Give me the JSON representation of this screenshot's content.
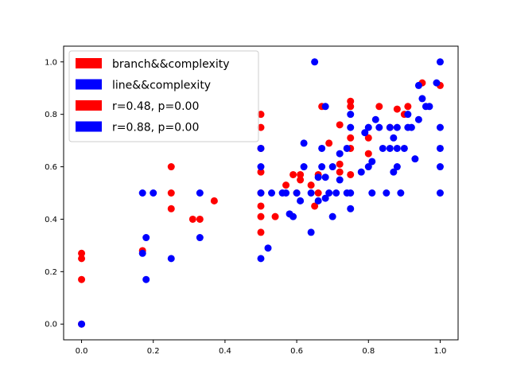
{
  "chart_data": {
    "type": "scatter",
    "xlim": [
      -0.05,
      1.05
    ],
    "ylim": [
      -0.06,
      1.06
    ],
    "x_ticks": [
      0.0,
      0.2,
      0.4,
      0.6,
      0.8,
      1.0
    ],
    "y_ticks": [
      0.0,
      0.2,
      0.4,
      0.6,
      0.8,
      1.0
    ],
    "x_tick_labels": [
      "0.0",
      "0.2",
      "0.4",
      "0.6",
      "0.8",
      "1.0"
    ],
    "y_tick_labels": [
      "0.0",
      "0.2",
      "0.4",
      "0.6",
      "0.8",
      "1.0"
    ],
    "grid": false,
    "legend_position": "upper-left",
    "legend": [
      {
        "label": "branch&&complexity",
        "color": "#ff0000"
      },
      {
        "label": "line&&complexity",
        "color": "#0000ff"
      },
      {
        "label": "r=0.48, p=0.00",
        "color": "#ff0000"
      },
      {
        "label": "r=0.88, p=0.00",
        "color": "#0000ff"
      }
    ],
    "series": [
      {
        "name": "branch&&complexity",
        "color": "#ff0000",
        "points": [
          [
            0.0,
            0.17
          ],
          [
            0.0,
            0.25
          ],
          [
            0.0,
            0.27
          ],
          [
            0.0,
            0.0
          ],
          [
            0.17,
            0.28
          ],
          [
            0.25,
            0.44
          ],
          [
            0.25,
            0.5
          ],
          [
            0.25,
            0.6
          ],
          [
            0.31,
            0.4
          ],
          [
            0.33,
            0.4
          ],
          [
            0.37,
            0.47
          ],
          [
            0.5,
            0.35
          ],
          [
            0.5,
            0.41
          ],
          [
            0.5,
            0.45
          ],
          [
            0.5,
            0.5
          ],
          [
            0.5,
            0.58
          ],
          [
            0.5,
            0.67
          ],
          [
            0.5,
            0.75
          ],
          [
            0.5,
            0.8
          ],
          [
            0.54,
            0.41
          ],
          [
            0.57,
            0.53
          ],
          [
            0.59,
            0.57
          ],
          [
            0.6,
            0.5
          ],
          [
            0.61,
            0.55
          ],
          [
            0.61,
            0.57
          ],
          [
            0.64,
            0.53
          ],
          [
            0.65,
            0.45
          ],
          [
            0.66,
            0.5
          ],
          [
            0.66,
            0.57
          ],
          [
            0.67,
            0.83
          ],
          [
            0.69,
            0.69
          ],
          [
            0.72,
            0.58
          ],
          [
            0.72,
            0.61
          ],
          [
            0.72,
            0.76
          ],
          [
            0.75,
            0.57
          ],
          [
            0.75,
            0.67
          ],
          [
            0.75,
            0.71
          ],
          [
            0.75,
            0.83
          ],
          [
            0.75,
            0.85
          ],
          [
            0.8,
            0.65
          ],
          [
            0.8,
            0.71
          ],
          [
            0.83,
            0.83
          ],
          [
            0.86,
            0.75
          ],
          [
            0.88,
            0.82
          ],
          [
            0.9,
            0.8
          ],
          [
            0.91,
            0.83
          ],
          [
            0.95,
            0.92
          ],
          [
            1.0,
            0.91
          ]
        ]
      },
      {
        "name": "line&&complexity",
        "color": "#0000ff",
        "points": [
          [
            0.0,
            0.0
          ],
          [
            0.17,
            0.27
          ],
          [
            0.17,
            0.5
          ],
          [
            0.18,
            0.17
          ],
          [
            0.18,
            0.33
          ],
          [
            0.2,
            0.5
          ],
          [
            0.25,
            0.25
          ],
          [
            0.33,
            0.33
          ],
          [
            0.33,
            0.5
          ],
          [
            0.5,
            0.25
          ],
          [
            0.5,
            0.5
          ],
          [
            0.5,
            0.6
          ],
          [
            0.5,
            0.67
          ],
          [
            0.52,
            0.29
          ],
          [
            0.53,
            0.5
          ],
          [
            0.56,
            0.5
          ],
          [
            0.57,
            0.5
          ],
          [
            0.58,
            0.42
          ],
          [
            0.59,
            0.41
          ],
          [
            0.6,
            0.5
          ],
          [
            0.61,
            0.47
          ],
          [
            0.62,
            0.6
          ],
          [
            0.62,
            0.69
          ],
          [
            0.64,
            0.35
          ],
          [
            0.64,
            0.5
          ],
          [
            0.65,
            1.0
          ],
          [
            0.66,
            0.47
          ],
          [
            0.66,
            0.56
          ],
          [
            0.67,
            0.6
          ],
          [
            0.67,
            0.67
          ],
          [
            0.68,
            0.48
          ],
          [
            0.68,
            0.56
          ],
          [
            0.68,
            0.83
          ],
          [
            0.69,
            0.5
          ],
          [
            0.7,
            0.41
          ],
          [
            0.7,
            0.6
          ],
          [
            0.71,
            0.5
          ],
          [
            0.72,
            0.55
          ],
          [
            0.72,
            0.65
          ],
          [
            0.74,
            0.5
          ],
          [
            0.74,
            0.67
          ],
          [
            0.75,
            0.44
          ],
          [
            0.75,
            0.5
          ],
          [
            0.75,
            0.75
          ],
          [
            0.75,
            0.8
          ],
          [
            0.78,
            0.58
          ],
          [
            0.79,
            0.73
          ],
          [
            0.8,
            0.6
          ],
          [
            0.8,
            0.75
          ],
          [
            0.81,
            0.5
          ],
          [
            0.81,
            0.62
          ],
          [
            0.82,
            0.78
          ],
          [
            0.83,
            0.75
          ],
          [
            0.84,
            0.67
          ],
          [
            0.85,
            0.5
          ],
          [
            0.86,
            0.67
          ],
          [
            0.86,
            0.75
          ],
          [
            0.87,
            0.58
          ],
          [
            0.87,
            0.71
          ],
          [
            0.88,
            0.6
          ],
          [
            0.88,
            0.67
          ],
          [
            0.88,
            0.75
          ],
          [
            0.89,
            0.5
          ],
          [
            0.9,
            0.67
          ],
          [
            0.91,
            0.75
          ],
          [
            0.91,
            0.8
          ],
          [
            0.92,
            0.75
          ],
          [
            0.93,
            0.63
          ],
          [
            0.94,
            0.78
          ],
          [
            0.94,
            0.91
          ],
          [
            0.95,
            0.86
          ],
          [
            0.96,
            0.83
          ],
          [
            0.97,
            0.83
          ],
          [
            0.99,
            0.92
          ],
          [
            1.0,
            0.5
          ],
          [
            1.0,
            0.6
          ],
          [
            1.0,
            0.67
          ],
          [
            1.0,
            0.75
          ],
          [
            1.0,
            1.0
          ]
        ]
      }
    ]
  }
}
